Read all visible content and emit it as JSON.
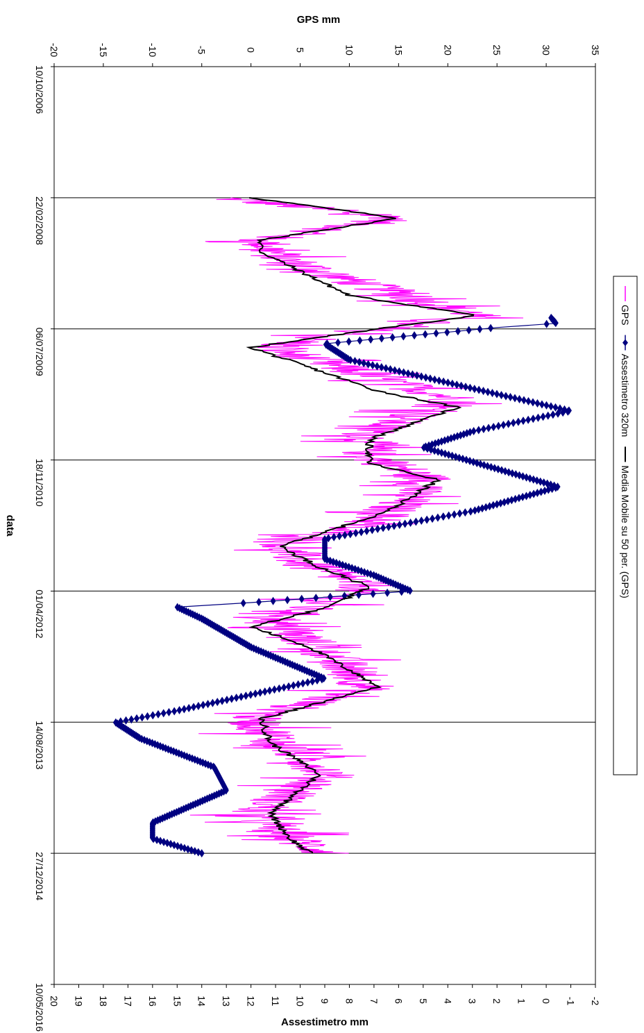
{
  "chart_data": {
    "type": "line",
    "orientation": "rotated-90",
    "title": "",
    "xlabel": "data",
    "ylabel_left": "GPS mm",
    "ylabel_right": "Assestimetro mm",
    "x_ticks": [
      "10/10/2006",
      "22/02/2008",
      "06/07/2009",
      "18/11/2010",
      "01/04/2012",
      "14/08/2013",
      "27/12/2014",
      "10/05/2016"
    ],
    "y_left_ticks": [
      "-20",
      "-15",
      "-10",
      "-5",
      "0",
      "5",
      "10",
      "15",
      "20",
      "25",
      "30",
      "35"
    ],
    "y_left_range": [
      -20,
      35
    ],
    "y_right_ticks": [
      "20",
      "19",
      "18",
      "17",
      "16",
      "15",
      "14",
      "13",
      "12",
      "11",
      "10",
      "9",
      "8",
      "7",
      "6",
      "5",
      "4",
      "3",
      "2",
      "1",
      "0",
      "-1",
      "-2"
    ],
    "y_right_range": [
      20,
      -2
    ],
    "grid": true,
    "legend_position": "right",
    "x_range": [
      "2006-10-10",
      "2016-05-10"
    ],
    "series": [
      {
        "name": "GPS",
        "axis": "left",
        "color": "#ff00ff",
        "style": "noisy-line",
        "noise_amplitude_mm": 3,
        "points": [
          [
            "2008-02-22",
            -3
          ],
          [
            "2008-05-10",
            15
          ],
          [
            "2008-08-01",
            1
          ],
          [
            "2008-10-10",
            3
          ],
          [
            "2009-01-01",
            10
          ],
          [
            "2009-05-15",
            23
          ],
          [
            "2009-08-01",
            8
          ],
          [
            "2009-09-15",
            2
          ],
          [
            "2010-01-01",
            12
          ],
          [
            "2010-04-01",
            21
          ],
          [
            "2010-08-01",
            12
          ],
          [
            "2010-11-01",
            12
          ],
          [
            "2011-02-01",
            18
          ],
          [
            "2011-07-01",
            13
          ],
          [
            "2011-10-15",
            3
          ],
          [
            "2012-01-01",
            6
          ],
          [
            "2012-03-15",
            12
          ],
          [
            "2012-05-01",
            8
          ],
          [
            "2012-08-01",
            2
          ],
          [
            "2012-11-01",
            7
          ],
          [
            "2013-04-01",
            12
          ],
          [
            "2013-08-01",
            0
          ],
          [
            "2013-11-01",
            3
          ],
          [
            "2014-03-01",
            8
          ],
          [
            "2014-08-01",
            0
          ],
          [
            "2014-11-01",
            4
          ],
          [
            "2014-12-27",
            8
          ]
        ]
      },
      {
        "name": "Assestimetro 320m",
        "axis": "right",
        "color": "#000080",
        "style": "line-with-diamond-markers",
        "points": [
          [
            "2009-05-25",
            -0.2
          ],
          [
            "2009-06-15",
            -0.4
          ],
          [
            "2009-07-01",
            2.0
          ],
          [
            "2009-09-01",
            9.0
          ],
          [
            "2009-11-01",
            8.0
          ],
          [
            "2010-03-01",
            2.5
          ],
          [
            "2010-05-15",
            -1.0
          ],
          [
            "2010-08-01",
            3.0
          ],
          [
            "2010-10-01",
            5.0
          ],
          [
            "2011-02-01",
            0.5
          ],
          [
            "2011-03-01",
            -0.5
          ],
          [
            "2011-06-01",
            3.0
          ],
          [
            "2011-09-15",
            9.0
          ],
          [
            "2011-12-01",
            9.0
          ],
          [
            "2012-02-01",
            7.0
          ],
          [
            "2012-04-01",
            5.5
          ],
          [
            "2012-05-15",
            12.0
          ],
          [
            "2012-06-01",
            15.0
          ],
          [
            "2012-07-15",
            14.0
          ],
          [
            "2012-11-01",
            12.0
          ],
          [
            "2013-03-01",
            9.0
          ],
          [
            "2013-07-01",
            15.0
          ],
          [
            "2013-08-15",
            17.5
          ],
          [
            "2013-10-15",
            16.5
          ],
          [
            "2014-02-01",
            13.5
          ],
          [
            "2014-05-01",
            13.0
          ],
          [
            "2014-09-01",
            16.0
          ],
          [
            "2014-11-01",
            16.0
          ],
          [
            "2014-12-27",
            14.0
          ]
        ]
      },
      {
        "name": "Media Mobile su 50 per. (GPS)",
        "axis": "left",
        "color": "#000000",
        "style": "line",
        "points": [
          [
            "2008-02-22",
            0
          ],
          [
            "2008-05-10",
            15
          ],
          [
            "2008-08-01",
            1
          ],
          [
            "2008-09-15",
            1
          ],
          [
            "2009-03-01",
            10
          ],
          [
            "2009-05-15",
            23
          ],
          [
            "2009-08-01",
            8
          ],
          [
            "2009-09-15",
            0
          ],
          [
            "2010-03-01",
            13
          ],
          [
            "2010-05-01",
            21
          ],
          [
            "2010-09-01",
            12
          ],
          [
            "2010-12-01",
            12
          ],
          [
            "2011-02-01",
            19
          ],
          [
            "2011-06-01",
            14
          ],
          [
            "2011-10-15",
            3
          ],
          [
            "2012-01-01",
            7
          ],
          [
            "2012-03-15",
            12
          ],
          [
            "2012-06-01",
            8
          ],
          [
            "2012-08-15",
            0
          ],
          [
            "2012-11-01",
            6
          ],
          [
            "2013-04-01",
            13
          ],
          [
            "2013-08-01",
            1
          ],
          [
            "2013-11-01",
            2
          ],
          [
            "2014-03-01",
            7
          ],
          [
            "2014-08-01",
            2
          ],
          [
            "2014-11-01",
            4
          ],
          [
            "2014-12-27",
            6
          ]
        ]
      }
    ]
  }
}
